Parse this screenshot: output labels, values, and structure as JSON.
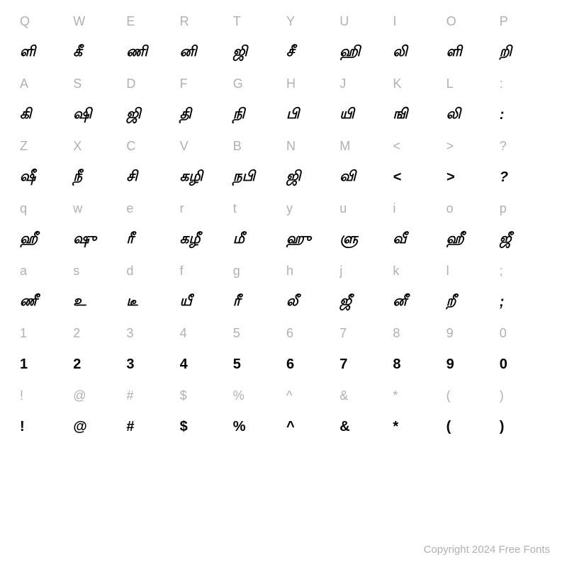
{
  "rows": [
    {
      "type": "label",
      "cells": [
        "Q",
        "W",
        "E",
        "R",
        "T",
        "Y",
        "U",
        "I",
        "O",
        "P"
      ]
    },
    {
      "type": "glyph",
      "cells": [
        "ளி",
        "கீ",
        "ணி",
        "னி",
        "ஜி",
        "சீ",
        "ஹி",
        "லி",
        "ளி",
        "றி"
      ]
    },
    {
      "type": "label",
      "cells": [
        "A",
        "S",
        "D",
        "F",
        "G",
        "H",
        "J",
        "K",
        "L",
        ":"
      ]
    },
    {
      "type": "glyph",
      "cells": [
        "கி",
        "ஷி",
        "ஜி",
        "தி",
        "நி",
        "பி",
        "யி",
        "ஙி",
        "லி",
        ":"
      ]
    },
    {
      "type": "label",
      "cells": [
        "Z",
        "X",
        "C",
        "V",
        "B",
        "N",
        "M",
        "<",
        ">",
        "?"
      ]
    },
    {
      "type": "glyph",
      "cells": [
        "ஷீ",
        "நீ",
        "சி",
        "கழி",
        "நபி",
        "ஜி",
        "வி",
        "<",
        ">",
        "?"
      ]
    },
    {
      "type": "label",
      "cells": [
        "q",
        "w",
        "e",
        "r",
        "t",
        "y",
        "u",
        "i",
        "o",
        "p"
      ]
    },
    {
      "type": "glyph",
      "cells": [
        "ஹீ",
        "ஷு",
        "ரீ",
        "கழீ",
        "மீ",
        "ஹு",
        "ளு",
        "வீ",
        "ஹீ",
        "ஜீ"
      ]
    },
    {
      "type": "label",
      "cells": [
        "a",
        "s",
        "d",
        "f",
        "g",
        "h",
        "j",
        "k",
        "l",
        ";"
      ]
    },
    {
      "type": "glyph",
      "cells": [
        "ணீ",
        "உ",
        "டீ",
        "யீ",
        "ரீ",
        "லீ",
        "ஜீ",
        "னீ",
        "றீ",
        ";"
      ]
    },
    {
      "type": "label",
      "cells": [
        "1",
        "2",
        "3",
        "4",
        "5",
        "6",
        "7",
        "8",
        "9",
        "0"
      ]
    },
    {
      "type": "glyph-plain",
      "cells": [
        "1",
        "2",
        "3",
        "4",
        "5",
        "6",
        "7",
        "8",
        "9",
        "0"
      ]
    },
    {
      "type": "label",
      "cells": [
        "!",
        "@",
        "#",
        "$",
        "%",
        "^",
        "&",
        "*",
        "(",
        ")"
      ]
    },
    {
      "type": "glyph-plain",
      "cells": [
        "!",
        "@",
        "#",
        "$",
        "%",
        "^",
        "&",
        "*",
        "(",
        ")"
      ]
    }
  ],
  "copyright": "Copyright 2024 Free Fonts",
  "colors": {
    "label_color": "#b0b0b0",
    "glyph_color": "#000000",
    "background": "#ffffff"
  },
  "typography": {
    "label_fontsize": 18,
    "glyph_fontsize": 20,
    "copyright_fontsize": 15
  }
}
